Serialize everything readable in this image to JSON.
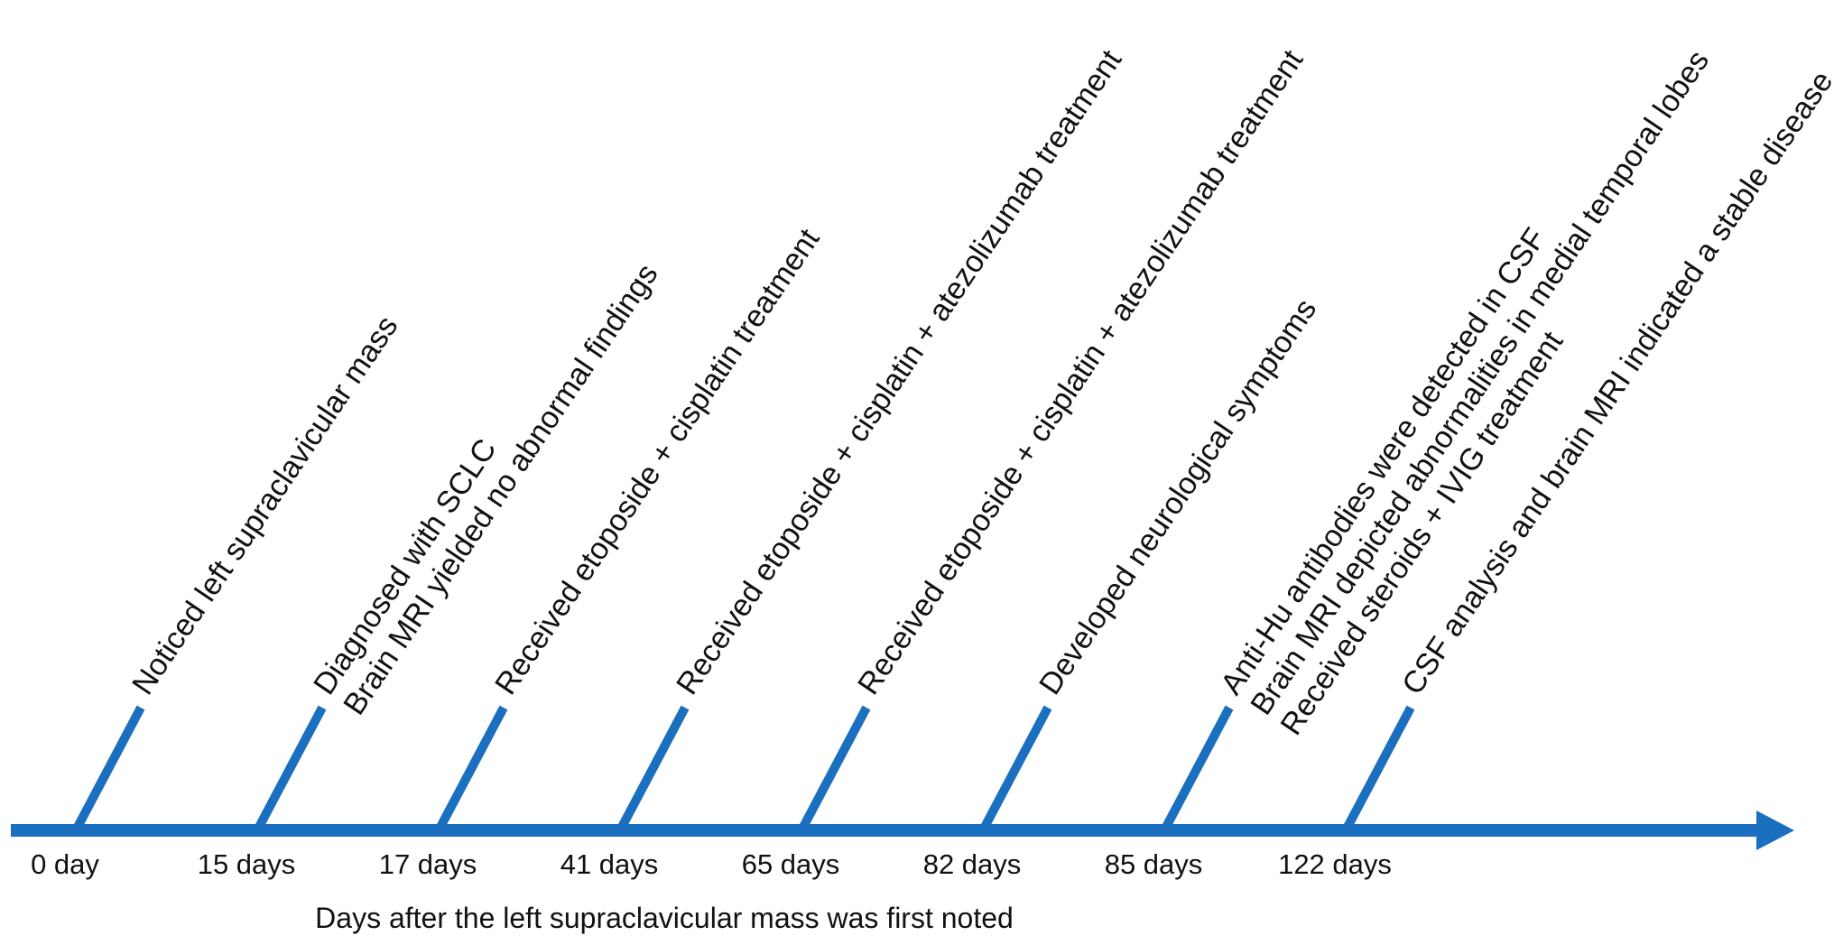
{
  "colors": {
    "line": "#1a6fbf",
    "text": "#111111",
    "background": "#ffffff"
  },
  "axis_title": "Days after the left supraclavicular mass was first noted",
  "events": [
    {
      "day_label": "0 day",
      "lines": [
        "Noticed left supraclavicular mass"
      ]
    },
    {
      "day_label": "15 days",
      "lines": [
        "Diagnosed with SCLC",
        "Brain MRI yielded no abnormal findings"
      ]
    },
    {
      "day_label": "17 days",
      "lines": [
        "Received etoposide + cisplatin treatment"
      ]
    },
    {
      "day_label": "41 days",
      "lines": [
        "Received etoposide + cisplatin + atezolizumab treatment"
      ]
    },
    {
      "day_label": "65 days",
      "lines": [
        "Received etoposide + cisplatin + atezolizumab treatment"
      ]
    },
    {
      "day_label": "82 days",
      "lines": [
        "Developed neurological symptoms"
      ]
    },
    {
      "day_label": "85 days",
      "lines": [
        "Anti-Hu antibodies were detected in CSF",
        "Brain MRI depicted abnormalities in medial temporal lobes",
        "Received steroids + IVIG treatment"
      ]
    },
    {
      "day_label": "122 days",
      "lines": [
        "CSF analysis and brain MRI indicated a stable disease"
      ]
    }
  ]
}
